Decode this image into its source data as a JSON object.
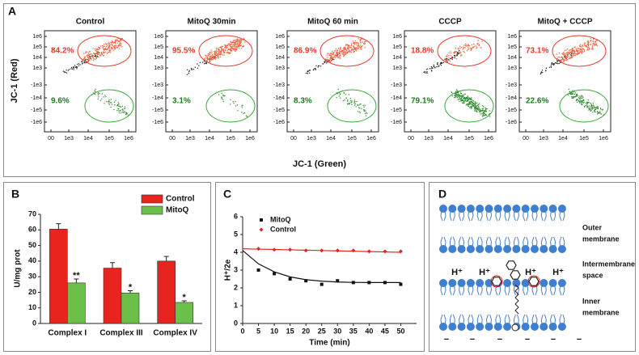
{
  "panel_a": {
    "label": "A",
    "y_label": "JC-1 (Red)",
    "x_label": "JC-1 (Green)",
    "yticks": [
      "1e6",
      "1e5",
      "1e4",
      "1e3",
      "-1e3",
      "-1e4",
      "-1e5",
      "-1e6"
    ],
    "xticks": [
      "00",
      "1e3",
      "1e4",
      "1e5",
      "1e6"
    ],
    "plots": [
      {
        "title": "Control",
        "red_percent": "84.2%",
        "green_percent": "9.6%"
      },
      {
        "title": "MitoQ  30min",
        "red_percent": "95.5%",
        "green_percent": "3.1%"
      },
      {
        "title": "MitoQ 60 min",
        "red_percent": "86.9%",
        "green_percent": "8.3%"
      },
      {
        "title": "CCCP",
        "red_percent": "18.8%",
        "green_percent": "79.1%"
      },
      {
        "title": "MitoQ + CCCP",
        "red_percent": "73.1%",
        "green_percent": "22.6%"
      }
    ]
  },
  "chart_data": [
    {
      "type": "bar",
      "panel_label": "B",
      "y_label": "U/mg prot",
      "categories": [
        "Complex I",
        "Complex III",
        "Complex IV"
      ],
      "series": [
        {
          "name": "Control",
          "color": "#e8241e",
          "values": [
            60.5,
            35.5,
            40
          ],
          "errors": [
            3.5,
            3.5,
            3
          ]
        },
        {
          "name": "MitoQ",
          "color": "#6cc04a",
          "values": [
            26,
            19.5,
            13.5
          ],
          "errors": [
            2.5,
            1.5,
            1
          ],
          "significance": [
            "**",
            "*",
            "*"
          ]
        }
      ],
      "ylim": [
        0,
        70
      ],
      "yticks": [
        0,
        10,
        20,
        30,
        40,
        50,
        60,
        70
      ],
      "legend": "top-right"
    },
    {
      "type": "scatter",
      "panel_label": "C",
      "y_label": "H⁺/2e",
      "x_label": "Time (min)",
      "x": [
        0,
        5,
        10,
        15,
        20,
        25,
        30,
        35,
        40,
        45,
        50
      ],
      "series": [
        {
          "name": "MitoQ",
          "color": "#111111",
          "marker": "square",
          "values": [
            null,
            3.0,
            2.8,
            2.5,
            2.4,
            2.2,
            2.4,
            2.3,
            2.3,
            2.3,
            2.2
          ],
          "fit": [
            4.1,
            3.35,
            2.9,
            2.62,
            2.46,
            2.38,
            2.33,
            2.31,
            2.3,
            2.3,
            2.3
          ]
        },
        {
          "name": "Control",
          "color": "#e8241e",
          "marker": "diamond",
          "values": [
            null,
            4.2,
            4.15,
            4.15,
            4.1,
            4.1,
            4.1,
            4.1,
            4.05,
            4.05,
            4.05
          ],
          "fit": [
            4.2,
            4.18,
            4.16,
            4.14,
            4.12,
            4.1,
            4.08,
            4.06,
            4.04,
            4.02,
            4.0
          ]
        }
      ],
      "xlim": [
        0,
        55
      ],
      "ylim": [
        0,
        6
      ],
      "xticks": [
        0,
        5,
        10,
        15,
        20,
        25,
        30,
        35,
        40,
        45,
        50
      ],
      "yticks": [
        0,
        1,
        2,
        3,
        4,
        5,
        6
      ],
      "legend": "top-left"
    }
  ],
  "panel_d": {
    "label": "D",
    "regions": [
      {
        "lines": [
          "Outer",
          "membrane"
        ]
      },
      {
        "lines": [
          "Intermembrane",
          "space"
        ]
      },
      {
        "lines": [
          "Inner",
          "membrane"
        ]
      }
    ],
    "protons": [
      "H⁺",
      "H⁺",
      "H⁺",
      "H⁺"
    ],
    "charges": [
      "−",
      "−",
      "−",
      "−",
      "−",
      "−"
    ]
  }
}
